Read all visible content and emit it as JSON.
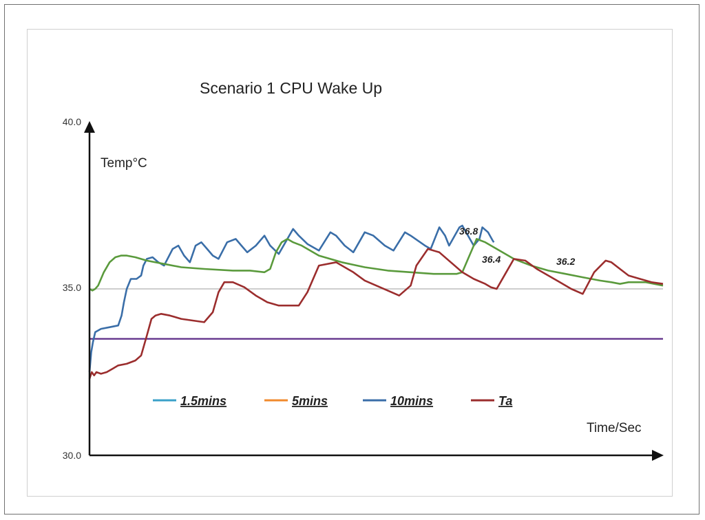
{
  "chart_data": {
    "type": "line",
    "title": "Scenario 1 CPU  Wake Up",
    "ylabel": "Temp°C",
    "xlabel": "Time/Sec",
    "ylim": [
      30,
      40
    ],
    "xlim": [
      0,
      100
    ],
    "y_ticks": [
      "30.0",
      "35.0",
      "40.0"
    ],
    "grid": false,
    "reference_lines": [
      {
        "y": 35.0,
        "color": "#bdbdbd"
      },
      {
        "y": 33.5,
        "color": "#5b2a86"
      }
    ],
    "legend": {
      "placement": "bottom-left",
      "entries": [
        {
          "label": "1.5mins",
          "color": "#3aa0c8"
        },
        {
          "label": "5mins",
          "color": "#f08a2c"
        },
        {
          "label": "10mins",
          "color": "#3a6ea8"
        },
        {
          "label": "Ta",
          "color": "#9b2d2d"
        }
      ]
    },
    "annotations": [
      {
        "text": "36.8",
        "x": 64.5,
        "y": 36.75
      },
      {
        "text": "36.4",
        "x": 68.5,
        "y": 35.75
      },
      {
        "text": "36.2",
        "x": 81.5,
        "y": 35.75
      }
    ],
    "series": [
      {
        "name": "10mins",
        "color": "#3a6ea8",
        "x": [
          0,
          0.3,
          0.6,
          1.0,
          2.0,
          3.5,
          5.0,
          5.6,
          6.0,
          6.5,
          7.2,
          8.2,
          9.0,
          9.4,
          10.0,
          11.0,
          12.0,
          13.0,
          14.5,
          15.5,
          16.5,
          17.5,
          18.5,
          19.5,
          20.5,
          21.5,
          22.5,
          24.0,
          25.5,
          26.5,
          27.5,
          29.0,
          30.5,
          31.5,
          33.0,
          35.5,
          36.5,
          38.0,
          40.0,
          42.0,
          43.0,
          44.5,
          46.0,
          48.0,
          49.5,
          51.5,
          53.0,
          55.0,
          56.0,
          58.5,
          59.5,
          61.0,
          62.0,
          62.7,
          64.5,
          65.0,
          66.0,
          67.0,
          68.0,
          68.5,
          69.5,
          70.3,
          70.5
        ],
        "values": [
          32.5,
          33.1,
          33.4,
          33.7,
          33.8,
          33.85,
          33.9,
          34.2,
          34.6,
          35.0,
          35.3,
          35.3,
          35.4,
          35.7,
          35.9,
          35.95,
          35.8,
          35.7,
          36.2,
          36.3,
          36.0,
          35.8,
          36.3,
          36.4,
          36.2,
          36.0,
          35.9,
          36.4,
          36.5,
          36.3,
          36.1,
          36.3,
          36.6,
          36.3,
          36.05,
          36.8,
          36.6,
          36.35,
          36.15,
          36.7,
          36.6,
          36.3,
          36.1,
          36.7,
          36.6,
          36.3,
          36.15,
          36.7,
          36.6,
          36.3,
          36.2,
          36.85,
          36.6,
          36.3,
          36.85,
          36.9,
          36.6,
          36.3,
          36.5,
          36.85,
          36.7,
          36.45,
          36.4
        ]
      },
      {
        "name": "1.5mins",
        "color": "#5a9a3c",
        "x": [
          0,
          0.5,
          1.0,
          1.5,
          2.5,
          3.5,
          4.5,
          5.5,
          6.5,
          8.0,
          10.0,
          13.0,
          16.0,
          20.0,
          25.0,
          28.0,
          30.5,
          31.5,
          32.5,
          33.5,
          34.5,
          35.5,
          37.0,
          40.0,
          44.0,
          48.0,
          52.0,
          56.0,
          60.0,
          64.0,
          65.0,
          66.0,
          67.0,
          67.5,
          69.0,
          71.0,
          74.0,
          77.0,
          80.0,
          83.0,
          86.0,
          89.0,
          91.0,
          92.5,
          94.0,
          97.0,
          100.0
        ],
        "values": [
          35.0,
          34.95,
          35.0,
          35.1,
          35.5,
          35.8,
          35.95,
          36.0,
          36.0,
          35.95,
          35.85,
          35.75,
          35.65,
          35.6,
          35.55,
          35.55,
          35.5,
          35.6,
          36.1,
          36.4,
          36.5,
          36.4,
          36.3,
          36.0,
          35.8,
          35.65,
          35.55,
          35.5,
          35.45,
          35.45,
          35.5,
          35.9,
          36.3,
          36.5,
          36.4,
          36.2,
          35.9,
          35.7,
          35.55,
          35.45,
          35.35,
          35.25,
          35.2,
          35.15,
          35.2,
          35.2,
          35.1
        ]
      },
      {
        "name": "Ta",
        "color": "#9b2d2d",
        "x": [
          0,
          0.4,
          0.8,
          1.2,
          2.0,
          3.0,
          4.0,
          5.0,
          6.5,
          8.0,
          9.0,
          10.0,
          10.8,
          11.5,
          12.5,
          14.0,
          16.0,
          18.0,
          20.0,
          21.5,
          22.5,
          23.5,
          25.0,
          27.0,
          29.0,
          31.0,
          33.0,
          35.0,
          36.5,
          38.0,
          40.0,
          43.0,
          46.0,
          48.0,
          50.0,
          52.0,
          54.0,
          56.0,
          57.0,
          59.0,
          61.0,
          63.0,
          65.0,
          67.0,
          69.0,
          70.0,
          71.0,
          72.5,
          74.0,
          76.0,
          78.0,
          80.0,
          82.0,
          84.0,
          86.0,
          88.0,
          90.0,
          91.0,
          92.5,
          94.0,
          96.0,
          98.0,
          100.0
        ],
        "values": [
          32.3,
          32.5,
          32.4,
          32.5,
          32.45,
          32.5,
          32.6,
          32.7,
          32.75,
          32.85,
          33.0,
          33.6,
          34.1,
          34.2,
          34.25,
          34.2,
          34.1,
          34.05,
          34.0,
          34.3,
          34.9,
          35.2,
          35.2,
          35.05,
          34.8,
          34.6,
          34.5,
          34.5,
          34.5,
          34.9,
          35.7,
          35.8,
          35.5,
          35.25,
          35.1,
          34.95,
          34.8,
          35.1,
          35.7,
          36.2,
          36.1,
          35.8,
          35.5,
          35.3,
          35.15,
          35.05,
          35.0,
          35.45,
          35.9,
          35.85,
          35.6,
          35.4,
          35.2,
          35.0,
          34.85,
          35.5,
          35.85,
          35.8,
          35.6,
          35.4,
          35.3,
          35.2,
          35.15
        ]
      }
    ]
  }
}
